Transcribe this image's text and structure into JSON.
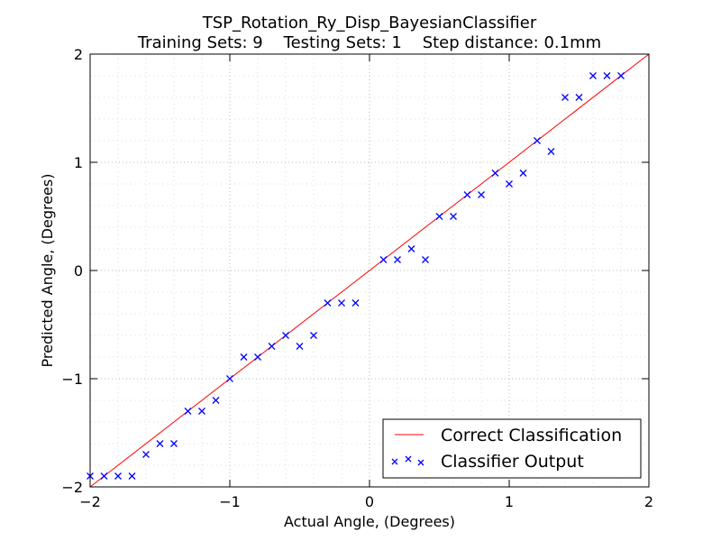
{
  "chart_data": {
    "type": "scatter",
    "title": "TSP_Rotation_Ry_Disp_BayesianClassifier",
    "subtitle": "Training Sets: 9    Testing Sets: 1    Step distance: 0.1mm",
    "xlabel": "Actual Angle, (Degrees)",
    "ylabel": "Predicted Angle, (Degrees)",
    "xlim": [
      -2,
      2
    ],
    "ylim": [
      -2,
      2
    ],
    "x_ticks": [
      -2,
      -1,
      0,
      1,
      2
    ],
    "y_ticks": [
      -2,
      -1,
      0,
      1,
      2
    ],
    "x_tick_labels": [
      "−2",
      "−1",
      "0",
      "1",
      "2"
    ],
    "y_tick_labels": [
      "−2",
      "−1",
      "0",
      "1",
      "2"
    ],
    "grid": true,
    "legend_position": "bottom-right",
    "series": [
      {
        "name": "Correct Classification",
        "kind": "line",
        "color": "#ff0000",
        "x": [
          -2,
          2
        ],
        "y": [
          -2,
          2
        ]
      },
      {
        "name": "Classifier Output",
        "kind": "scatter",
        "marker": "x",
        "color": "#0000ff",
        "x": [
          -2.0,
          -1.9,
          -1.8,
          -1.7,
          -1.6,
          -1.5,
          -1.4,
          -1.3,
          -1.2,
          -1.1,
          -1.0,
          -0.9,
          -0.8,
          -0.7,
          -0.6,
          -0.5,
          -0.4,
          -0.3,
          -0.2,
          -0.1,
          0.1,
          0.2,
          0.3,
          0.4,
          0.5,
          0.6,
          0.7,
          0.8,
          0.9,
          1.0,
          1.1,
          1.2,
          1.3,
          1.4,
          1.5,
          1.6,
          1.7,
          1.8
        ],
        "y": [
          -1.9,
          -1.9,
          -1.9,
          -1.9,
          -1.7,
          -1.6,
          -1.6,
          -1.3,
          -1.3,
          -1.2,
          -1.0,
          -0.8,
          -0.8,
          -0.7,
          -0.6,
          -0.7,
          -0.6,
          -0.3,
          -0.3,
          -0.3,
          0.1,
          0.1,
          0.2,
          0.1,
          0.5,
          0.5,
          0.7,
          0.7,
          0.9,
          0.8,
          0.9,
          1.2,
          1.1,
          1.6,
          1.6,
          1.8,
          1.8,
          1.8
        ]
      }
    ]
  }
}
